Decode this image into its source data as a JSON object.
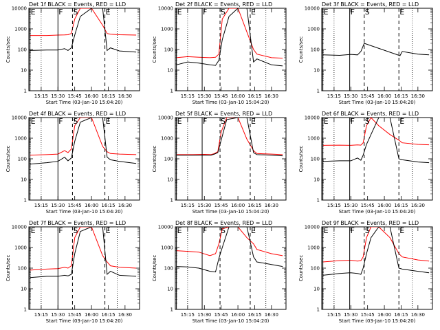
{
  "figure": {
    "title_format": "BLACK = Events, RED = LLD",
    "xlabel": "Start Time (03-Jan-10 15:04:20)",
    "ylabel": "Counts/sec",
    "xticks": [
      "15:15",
      "15:30",
      "15:45",
      "16:00",
      "16:15",
      "16:30"
    ],
    "yticks": [
      "1",
      "10",
      "100",
      "1000",
      "10000"
    ],
    "marker_labels": [
      "E",
      "F",
      "S",
      "E"
    ],
    "colors": {
      "events": "#000000",
      "lld": "#ff0000",
      "frame": "#000000"
    }
  },
  "chart_data": [
    {
      "type": "line",
      "title": "Det 1f BLACK = Events, RED = LLD",
      "xlabel": "Start Time (03-Jan-10 15:04:20)",
      "ylabel": "Counts/sec",
      "yscale": "log",
      "ylim": [
        1,
        10000
      ],
      "xlim": [
        "15:04",
        "16:43"
      ],
      "x": [
        "15:05",
        "15:20",
        "15:30",
        "15:36",
        "15:39",
        "15:42",
        "15:45",
        "15:50",
        "16:00",
        "16:10",
        "16:14",
        "16:17",
        "16:25",
        "16:40"
      ],
      "series": [
        {
          "name": "BLACK = Events",
          "color": "#000000",
          "values": [
            90,
            95,
            95,
            110,
            90,
            120,
            500,
            4000,
            10000,
            10000,
            90,
            120,
            85,
            75
          ]
        },
        {
          "name": "RED = LLD",
          "color": "#ff0000",
          "values": [
            480,
            480,
            500,
            510,
            520,
            600,
            3000,
            10000,
            10000,
            1500,
            600,
            550,
            520,
            500
          ]
        }
      ],
      "markers": [
        {
          "label": "E",
          "time": "15:05",
          "style": "solid"
        },
        {
          "label": "F",
          "time": "15:30",
          "style": "solid"
        },
        {
          "label": "S",
          "time": "15:43",
          "style": "dashed"
        },
        {
          "label": "E",
          "time": "16:12",
          "style": "dashed"
        }
      ],
      "dotted": [
        "15:15",
        "16:23"
      ]
    },
    {
      "type": "line",
      "title": "Det 2f BLACK = Events, RED = LLD",
      "xlabel": "Start Time (03-Jan-10 15:04:20)",
      "ylabel": "Counts/sec",
      "yscale": "log",
      "ylim": [
        1,
        10000
      ],
      "xlim": [
        "15:04",
        "16:43"
      ],
      "x": [
        "15:05",
        "15:15",
        "15:25",
        "15:35",
        "15:40",
        "15:43",
        "15:46",
        "15:52",
        "16:00",
        "16:08",
        "16:14",
        "16:17",
        "16:30",
        "16:40"
      ],
      "series": [
        {
          "name": "BLACK = Events",
          "color": "#000000",
          "values": [
            18,
            25,
            22,
            18,
            17,
            30,
            300,
            4000,
            10000,
            10000,
            25,
            35,
            18,
            16
          ]
        },
        {
          "name": "RED = LLD",
          "color": "#ff0000",
          "values": [
            40,
            45,
            42,
            40,
            42,
            60,
            3000,
            10000,
            10000,
            700,
            100,
            60,
            40,
            38
          ]
        }
      ],
      "markers": [
        {
          "label": "E",
          "time": "15:05",
          "style": "solid"
        },
        {
          "label": "F",
          "time": "15:28",
          "style": "solid"
        },
        {
          "label": "S",
          "time": "15:44",
          "style": "dashed"
        },
        {
          "label": "E",
          "time": "16:11",
          "style": "dashed"
        }
      ],
      "dotted": [
        "15:15",
        "16:25"
      ]
    },
    {
      "type": "line",
      "title": "Det 3f BLACK = Events, RED = LLD",
      "xlabel": "Start Time (03-Jan-10 15:04:20)",
      "ylabel": "Counts/sec",
      "yscale": "log",
      "ylim": [
        1,
        10000
      ],
      "xlim": [
        "15:04",
        "16:43"
      ],
      "x": [
        "15:05",
        "15:20",
        "15:30",
        "15:36",
        "15:39",
        "15:42",
        "16:14",
        "16:16",
        "16:30",
        "16:40"
      ],
      "series": [
        {
          "name": "BLACK = Events",
          "color": "#000000",
          "values": [
            55,
            52,
            58,
            55,
            80,
            200,
            50,
            80,
            60,
            55
          ]
        }
      ],
      "markers": [
        {
          "label": "E",
          "time": "15:05",
          "style": "solid"
        },
        {
          "label": "F",
          "time": "15:29",
          "style": "solid"
        },
        {
          "label": "S",
          "time": "15:42",
          "style": "dashed"
        },
        {
          "label": "E",
          "time": "16:13",
          "style": "dashed"
        }
      ],
      "dotted": [
        "15:15",
        "16:25"
      ]
    },
    {
      "type": "line",
      "title": "Det 4f BLACK = Events, RED = LLD",
      "xlabel": "Start Time (03-Jan-10 15:04:20)",
      "ylabel": "Counts/sec",
      "yscale": "log",
      "ylim": [
        1,
        10000
      ],
      "xlim": [
        "15:04",
        "16:43"
      ],
      "x": [
        "15:05",
        "15:20",
        "15:30",
        "15:36",
        "15:39",
        "15:42",
        "15:45",
        "15:50",
        "16:00",
        "16:10",
        "16:14",
        "16:17",
        "16:25",
        "16:40"
      ],
      "series": [
        {
          "name": "BLACK = Events",
          "color": "#000000",
          "values": [
            55,
            65,
            75,
            120,
            80,
            110,
            700,
            6000,
            10000,
            10000,
            120,
            90,
            75,
            60
          ]
        },
        {
          "name": "RED = LLD",
          "color": "#ff0000",
          "values": [
            150,
            160,
            170,
            250,
            200,
            300,
            4000,
            10000,
            10000,
            400,
            220,
            180,
            170,
            160
          ]
        }
      ],
      "markers": [
        {
          "label": "E",
          "time": "15:05",
          "style": "solid"
        },
        {
          "label": "F",
          "time": "15:30",
          "style": "solid"
        },
        {
          "label": "S",
          "time": "15:43",
          "style": "dashed"
        },
        {
          "label": "E",
          "time": "16:12",
          "style": "dashed"
        }
      ],
      "dotted": [
        "15:15",
        "16:23"
      ]
    },
    {
      "type": "line",
      "title": "Det 5f BLACK = Events, RED = LLD",
      "xlabel": "Start Time (03-Jan-10 15:04:20)",
      "ylabel": "Counts/sec",
      "yscale": "log",
      "ylim": [
        1,
        10000
      ],
      "xlim": [
        "15:04",
        "16:43"
      ],
      "x": [
        "15:05",
        "15:20",
        "15:30",
        "15:36",
        "15:39",
        "15:42",
        "15:45",
        "15:50",
        "16:00",
        "16:08",
        "16:14",
        "16:17",
        "16:30",
        "16:40"
      ],
      "series": [
        {
          "name": "BLACK = Events",
          "color": "#000000",
          "values": [
            150,
            150,
            150,
            150,
            170,
            200,
            800,
            8000,
            10000,
            10000,
            200,
            160,
            150,
            140
          ]
        },
        {
          "name": "RED = LLD",
          "color": "#ff0000",
          "values": [
            160,
            160,
            165,
            160,
            180,
            220,
            2000,
            10000,
            10000,
            900,
            250,
            180,
            170,
            160
          ]
        }
      ],
      "markers": [
        {
          "label": "E",
          "time": "15:05",
          "style": "solid"
        },
        {
          "label": "F",
          "time": "15:28",
          "style": "solid"
        },
        {
          "label": "S",
          "time": "15:44",
          "style": "dashed"
        },
        {
          "label": "E",
          "time": "16:11",
          "style": "dashed"
        }
      ],
      "dotted": [
        "15:15",
        "16:25"
      ]
    },
    {
      "type": "line",
      "title": "Det 6f BLACK = Events, RED = LLD",
      "xlabel": "Start Time (03-Jan-10 15:04:20)",
      "ylabel": "Counts/sec",
      "yscale": "log",
      "ylim": [
        1,
        10000
      ],
      "xlim": [
        "15:04",
        "16:43"
      ],
      "x": [
        "15:05",
        "15:20",
        "15:30",
        "15:36",
        "15:39",
        "15:41",
        "15:44",
        "15:48",
        "15:55",
        "16:05",
        "16:13",
        "16:16",
        "16:30",
        "16:40"
      ],
      "series": [
        {
          "name": "BLACK = Events",
          "color": "#000000",
          "values": [
            75,
            80,
            80,
            110,
            85,
            150,
            500,
            1500,
            10000,
            10000,
            100,
            90,
            70,
            65
          ]
        },
        {
          "name": "RED = LLD",
          "color": "#ff0000",
          "values": [
            450,
            460,
            450,
            470,
            460,
            600,
            4000,
            10000,
            4000,
            1500,
            800,
            600,
            500,
            480
          ]
        }
      ],
      "markers": [
        {
          "label": "E",
          "time": "15:05",
          "style": "solid"
        },
        {
          "label": "F",
          "time": "15:29",
          "style": "solid"
        },
        {
          "label": "S",
          "time": "15:42",
          "style": "dashed"
        },
        {
          "label": "E",
          "time": "16:13",
          "style": "dashed"
        }
      ],
      "dotted": [
        "15:15",
        "16:25"
      ]
    },
    {
      "type": "line",
      "title": "Det 7f BLACK = Events, RED = LLD",
      "xlabel": "Start Time (03-Jan-10 15:04:20)",
      "ylabel": "Counts/sec",
      "yscale": "log",
      "ylim": [
        1,
        10000
      ],
      "xlim": [
        "15:04",
        "16:43"
      ],
      "x": [
        "15:05",
        "15:20",
        "15:30",
        "15:36",
        "15:39",
        "15:42",
        "15:45",
        "15:50",
        "16:00",
        "16:10",
        "16:14",
        "16:17",
        "16:25",
        "16:40"
      ],
      "series": [
        {
          "name": "BLACK = Events",
          "color": "#000000",
          "values": [
            35,
            40,
            40,
            45,
            42,
            50,
            500,
            6000,
            10000,
            10000,
            50,
            70,
            45,
            40
          ]
        },
        {
          "name": "RED = LLD",
          "color": "#ff0000",
          "values": [
            80,
            90,
            95,
            110,
            100,
            130,
            3000,
            10000,
            10000,
            400,
            200,
            130,
            110,
            100
          ]
        }
      ],
      "markers": [
        {
          "label": "E",
          "time": "15:05",
          "style": "solid"
        },
        {
          "label": "F",
          "time": "15:30",
          "style": "solid"
        },
        {
          "label": "S",
          "time": "15:43",
          "style": "dashed"
        },
        {
          "label": "E",
          "time": "16:12",
          "style": "dashed"
        }
      ],
      "dotted": [
        "15:15",
        "16:23"
      ]
    },
    {
      "type": "line",
      "title": "Det 8f BLACK = Events, RED = LLD",
      "xlabel": "Start Time (03-Jan-10 15:04:20)",
      "ylabel": "Counts/sec",
      "yscale": "log",
      "ylim": [
        1,
        10000
      ],
      "xlim": [
        "15:04",
        "16:43"
      ],
      "x": [
        "15:05",
        "15:15",
        "15:25",
        "15:35",
        "15:40",
        "15:43",
        "15:46",
        "15:52",
        "16:00",
        "16:08",
        "16:14",
        "16:17",
        "16:30",
        "16:40"
      ],
      "series": [
        {
          "name": "BLACK = Events",
          "color": "#000000",
          "values": [
            120,
            115,
            100,
            70,
            65,
            300,
            1000,
            10000,
            10000,
            10000,
            350,
            200,
            150,
            120
          ]
        },
        {
          "name": "RED = LLD",
          "color": "#ff0000",
          "values": [
            700,
            650,
            600,
            400,
            500,
            1500,
            8000,
            10000,
            10000,
            3000,
            1500,
            800,
            500,
            400
          ]
        }
      ],
      "markers": [
        {
          "label": "E",
          "time": "15:05",
          "style": "solid"
        },
        {
          "label": "F",
          "time": "15:28",
          "style": "solid"
        },
        {
          "label": "S",
          "time": "15:44",
          "style": "dashed"
        },
        {
          "label": "E",
          "time": "16:11",
          "style": "dashed"
        }
      ],
      "dotted": [
        "15:15",
        "16:25"
      ]
    },
    {
      "type": "line",
      "title": "Det 9f BLACK = Events, RED = LLD",
      "xlabel": "Start Time (03-Jan-10 15:04:20)",
      "ylabel": "Counts/sec",
      "yscale": "log",
      "ylim": [
        1,
        10000
      ],
      "xlim": [
        "15:04",
        "16:43"
      ],
      "x": [
        "15:05",
        "15:20",
        "15:30",
        "15:36",
        "15:39",
        "15:41",
        "15:44",
        "15:48",
        "15:55",
        "16:05",
        "16:13",
        "16:16",
        "16:30",
        "16:40"
      ],
      "series": [
        {
          "name": "BLACK = Events",
          "color": "#000000",
          "values": [
            45,
            55,
            60,
            55,
            50,
            100,
            500,
            3000,
            10000,
            10000,
            100,
            90,
            70,
            60
          ]
        },
        {
          "name": "RED = LLD",
          "color": "#ff0000",
          "values": [
            200,
            230,
            240,
            220,
            230,
            350,
            3000,
            10000,
            10000,
            3000,
            500,
            350,
            250,
            220
          ]
        }
      ],
      "markers": [
        {
          "label": "E",
          "time": "15:05",
          "style": "solid"
        },
        {
          "label": "F",
          "time": "15:29",
          "style": "solid"
        },
        {
          "label": "S",
          "time": "15:42",
          "style": "dashed"
        },
        {
          "label": "E",
          "time": "16:13",
          "style": "dashed"
        }
      ],
      "dotted": [
        "15:15",
        "16:25"
      ]
    }
  ]
}
